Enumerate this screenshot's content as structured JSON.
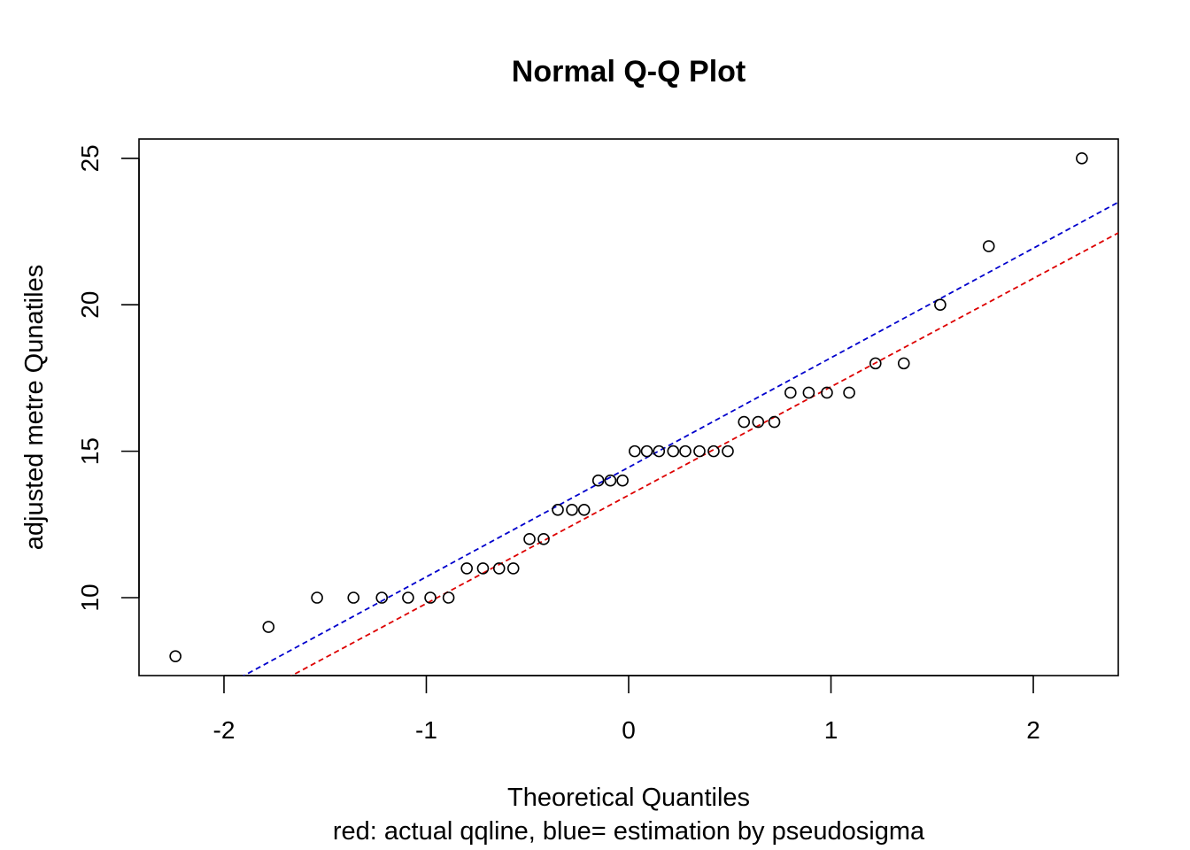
{
  "chart_data": {
    "type": "scatter",
    "title": "Normal Q-Q Plot",
    "xlabel": "Theoretical Quantiles",
    "subtitle": "red: actual qqline, blue= estimation by pseudosigma",
    "ylabel": "adjusted metre Qunatiles",
    "xlim": [
      -2.42,
      2.42
    ],
    "ylim": [
      7.34,
      25.66
    ],
    "xticks": [
      -2,
      -1,
      0,
      1,
      2
    ],
    "yticks": [
      10,
      15,
      20,
      25
    ],
    "grid": false,
    "points": {
      "x": [
        -2.24,
        -1.78,
        -1.54,
        -1.36,
        -1.22,
        -1.09,
        -0.98,
        -0.89,
        -0.8,
        -0.72,
        -0.64,
        -0.57,
        -0.49,
        -0.42,
        -0.35,
        -0.28,
        -0.22,
        -0.15,
        -0.09,
        -0.03,
        0.03,
        0.09,
        0.15,
        0.22,
        0.28,
        0.35,
        0.42,
        0.49,
        0.57,
        0.64,
        0.72,
        0.8,
        0.89,
        0.98,
        1.09,
        1.22,
        1.36,
        1.54,
        1.78,
        2.24
      ],
      "y": [
        8,
        9,
        10,
        10,
        10,
        10,
        10,
        10,
        11,
        11,
        11,
        11,
        12,
        12,
        13,
        13,
        13,
        14,
        14,
        14,
        15,
        15,
        15,
        15,
        15,
        15,
        15,
        15,
        16,
        16,
        16,
        17,
        17,
        17,
        17,
        18,
        18,
        20,
        22,
        25
      ]
    },
    "lines": [
      {
        "color": "#dd0000",
        "intercept": 13.5,
        "slope": 3.7
      },
      {
        "color": "#0000cc",
        "intercept": 14.45,
        "slope": 3.74
      }
    ]
  }
}
